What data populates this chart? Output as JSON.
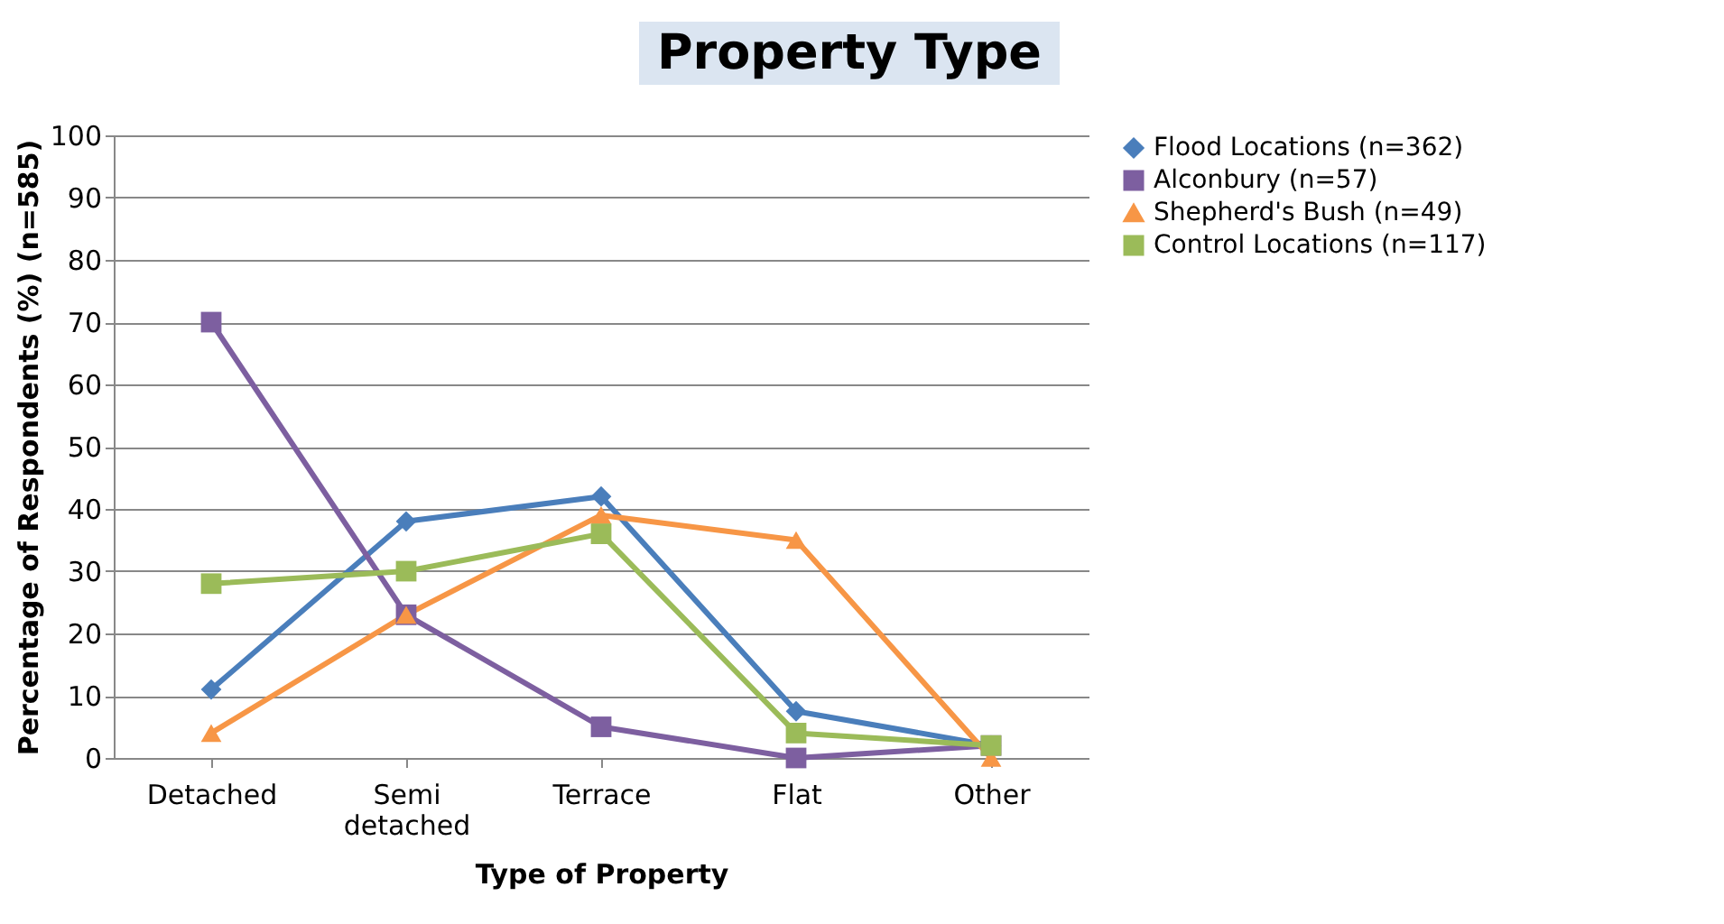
{
  "chart_data": {
    "type": "line",
    "title": "Property Type",
    "xlabel": "Type of Property",
    "ylabel": "Percentage of Respondents (%) (n=585)",
    "categories": [
      "Detached",
      "Semi detached",
      "Terrace",
      "Flat",
      "Other"
    ],
    "series": [
      {
        "name": "Flood Locations (n=362)",
        "color": "#4a7ebb",
        "marker": "diamond",
        "values": [
          11,
          38,
          42,
          7.5,
          2
        ]
      },
      {
        "name": "Alconbury (n=57)",
        "color": "#7d5fa0",
        "marker": "square",
        "values": [
          70,
          23,
          5,
          0,
          2
        ]
      },
      {
        "name": "Shepherd's Bush (n=49)",
        "color": "#f79646",
        "marker": "triangle",
        "values": [
          4,
          23,
          39,
          35,
          0
        ]
      },
      {
        "name": "Control Locations (n=117)",
        "color": "#9bbb59",
        "marker": "square",
        "values": [
          28,
          30,
          36,
          4,
          2
        ]
      }
    ],
    "ylim": [
      0,
      100
    ],
    "yticks": [
      0,
      10,
      20,
      30,
      40,
      50,
      60,
      70,
      80,
      90,
      100
    ],
    "grid": "y",
    "legend": "right"
  }
}
